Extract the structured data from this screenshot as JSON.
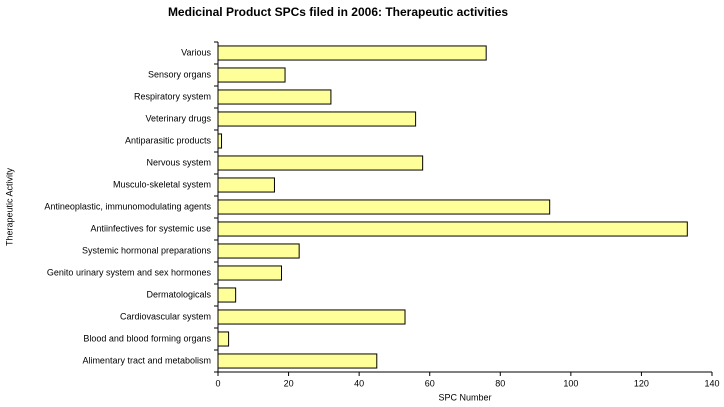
{
  "chart_data": {
    "type": "hbar",
    "title": "Medicinal Product SPCs filed in 2006: Therapeutic activities",
    "x_label": "SPC Number",
    "y_label": "Therapeutic Activity",
    "categories": [
      "Alimentary tract and metabolism",
      "Blood and blood forming organs",
      "Cardiovascular system",
      "Dermatologicals",
      "Genito urinary system and sex hormones",
      "Systemic hormonal preparations",
      "Antiinfectives for systemic use",
      "Antineoplastic, immunomodulating agents",
      "Musculo-skeletal system",
      "Nervous system",
      "Antiparasitic products",
      "Veterinary drugs",
      "Respiratory system",
      "Sensory organs",
      "Various"
    ],
    "values": [
      45,
      3,
      53,
      5,
      18,
      23,
      133,
      94,
      16,
      58,
      1,
      56,
      32,
      19,
      76
    ],
    "color": "#ffff99",
    "xlim": [
      0,
      140
    ],
    "xticks": [
      0,
      20,
      40,
      60,
      80,
      100,
      120,
      140
    ],
    "grid": false
  }
}
